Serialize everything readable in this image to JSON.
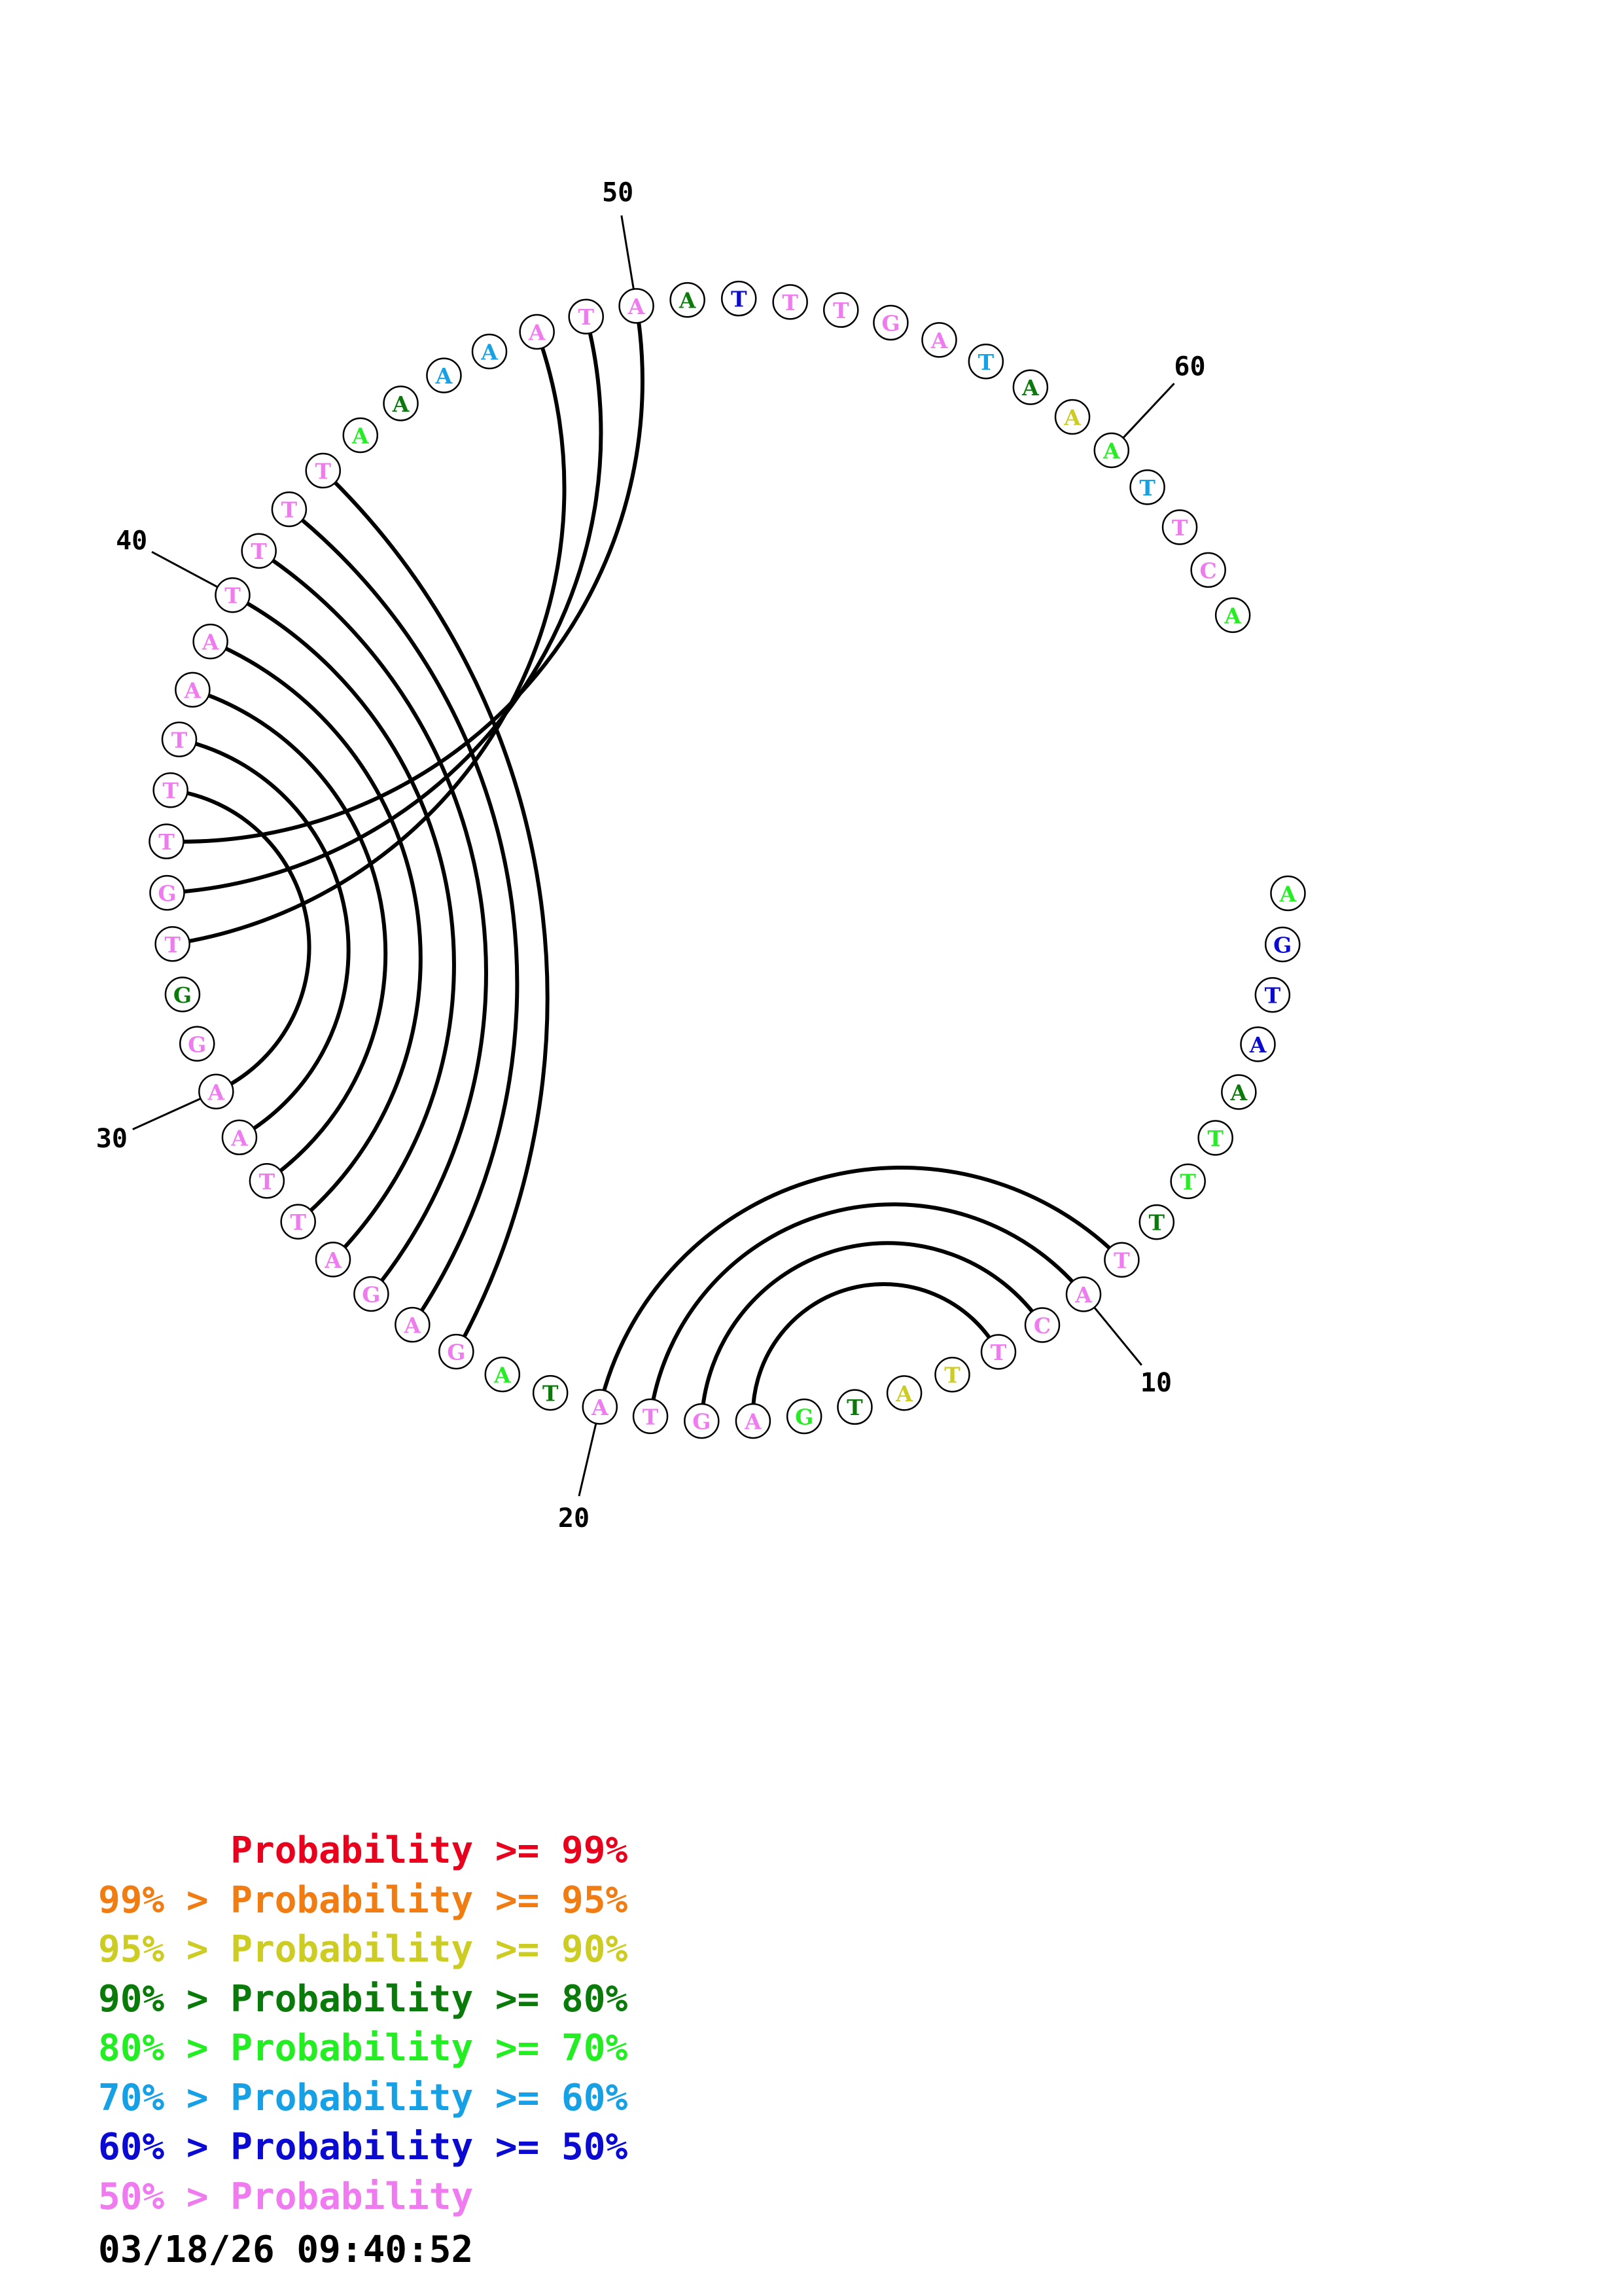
{
  "colors": {
    "p99": "#e8001c",
    "p95": "#f07c12",
    "p90": "#cccc22",
    "p80": "#0a7a0a",
    "p70": "#22ee22",
    "p60": "#16a0e6",
    "p50": "#0a0ad2",
    "plow": "#f07af0"
  },
  "sequence": [
    {
      "n": 1,
      "base": "A",
      "color": "p70"
    },
    {
      "n": 2,
      "base": "G",
      "color": "p50"
    },
    {
      "n": 3,
      "base": "T",
      "color": "p50"
    },
    {
      "n": 4,
      "base": "A",
      "color": "p50"
    },
    {
      "n": 5,
      "base": "A",
      "color": "p80"
    },
    {
      "n": 6,
      "base": "T",
      "color": "p70"
    },
    {
      "n": 7,
      "base": "T",
      "color": "p70"
    },
    {
      "n": 8,
      "base": "T",
      "color": "p80"
    },
    {
      "n": 9,
      "base": "T",
      "color": "plow"
    },
    {
      "n": 10,
      "base": "A",
      "color": "plow"
    },
    {
      "n": 11,
      "base": "C",
      "color": "plow"
    },
    {
      "n": 12,
      "base": "T",
      "color": "plow"
    },
    {
      "n": 13,
      "base": "T",
      "color": "p90"
    },
    {
      "n": 14,
      "base": "A",
      "color": "p90"
    },
    {
      "n": 15,
      "base": "T",
      "color": "p80"
    },
    {
      "n": 16,
      "base": "G",
      "color": "p70"
    },
    {
      "n": 17,
      "base": "A",
      "color": "plow"
    },
    {
      "n": 18,
      "base": "G",
      "color": "plow"
    },
    {
      "n": 19,
      "base": "T",
      "color": "plow"
    },
    {
      "n": 20,
      "base": "A",
      "color": "plow"
    },
    {
      "n": 21,
      "base": "T",
      "color": "p80"
    },
    {
      "n": 22,
      "base": "A",
      "color": "p70"
    },
    {
      "n": 23,
      "base": "G",
      "color": "plow"
    },
    {
      "n": 24,
      "base": "A",
      "color": "plow"
    },
    {
      "n": 25,
      "base": "G",
      "color": "plow"
    },
    {
      "n": 26,
      "base": "A",
      "color": "plow"
    },
    {
      "n": 27,
      "base": "T",
      "color": "plow"
    },
    {
      "n": 28,
      "base": "T",
      "color": "plow"
    },
    {
      "n": 29,
      "base": "A",
      "color": "plow"
    },
    {
      "n": 30,
      "base": "A",
      "color": "plow"
    },
    {
      "n": 31,
      "base": "G",
      "color": "plow"
    },
    {
      "n": 32,
      "base": "G",
      "color": "p80"
    },
    {
      "n": 33,
      "base": "T",
      "color": "plow"
    },
    {
      "n": 34,
      "base": "G",
      "color": "plow"
    },
    {
      "n": 35,
      "base": "T",
      "color": "plow"
    },
    {
      "n": 36,
      "base": "T",
      "color": "plow"
    },
    {
      "n": 37,
      "base": "T",
      "color": "plow"
    },
    {
      "n": 38,
      "base": "A",
      "color": "plow"
    },
    {
      "n": 39,
      "base": "A",
      "color": "plow"
    },
    {
      "n": 40,
      "base": "T",
      "color": "plow"
    },
    {
      "n": 41,
      "base": "T",
      "color": "plow"
    },
    {
      "n": 42,
      "base": "T",
      "color": "plow"
    },
    {
      "n": 43,
      "base": "T",
      "color": "plow"
    },
    {
      "n": 44,
      "base": "A",
      "color": "p70"
    },
    {
      "n": 45,
      "base": "A",
      "color": "p80"
    },
    {
      "n": 46,
      "base": "A",
      "color": "p60"
    },
    {
      "n": 47,
      "base": "A",
      "color": "p60"
    },
    {
      "n": 48,
      "base": "A",
      "color": "plow"
    },
    {
      "n": 49,
      "base": "T",
      "color": "plow"
    },
    {
      "n": 50,
      "base": "A",
      "color": "plow"
    },
    {
      "n": 51,
      "base": "A",
      "color": "p80"
    },
    {
      "n": 52,
      "base": "T",
      "color": "p50"
    },
    {
      "n": 53,
      "base": "T",
      "color": "plow"
    },
    {
      "n": 54,
      "base": "T",
      "color": "plow"
    },
    {
      "n": 55,
      "base": "G",
      "color": "plow"
    },
    {
      "n": 56,
      "base": "A",
      "color": "plow"
    },
    {
      "n": 57,
      "base": "T",
      "color": "p60"
    },
    {
      "n": 58,
      "base": "A",
      "color": "p80"
    },
    {
      "n": 59,
      "base": "A",
      "color": "p90"
    },
    {
      "n": 60,
      "base": "A",
      "color": "p70"
    },
    {
      "n": 61,
      "base": "T",
      "color": "p60"
    },
    {
      "n": 62,
      "base": "T",
      "color": "plow"
    },
    {
      "n": 63,
      "base": "C",
      "color": "plow"
    },
    {
      "n": 64,
      "base": "A",
      "color": "p70"
    }
  ],
  "pairs": [
    [
      9,
      20
    ],
    [
      10,
      19
    ],
    [
      11,
      18
    ],
    [
      12,
      17
    ],
    [
      23,
      43
    ],
    [
      24,
      42
    ],
    [
      25,
      41
    ],
    [
      26,
      40
    ],
    [
      27,
      39
    ],
    [
      28,
      38
    ],
    [
      29,
      37
    ],
    [
      30,
      36
    ],
    [
      35,
      50
    ],
    [
      34,
      49
    ],
    [
      33,
      48
    ]
  ],
  "position_labels": [
    {
      "n": 10,
      "text": "10"
    },
    {
      "n": 20,
      "text": "20"
    },
    {
      "n": 30,
      "text": "30"
    },
    {
      "n": 40,
      "text": "40"
    },
    {
      "n": 50,
      "text": "50"
    },
    {
      "n": 60,
      "text": "60"
    }
  ],
  "legend": [
    {
      "prefix": "",
      "label": "Probability >= 99%",
      "color": "p99"
    },
    {
      "prefix": "99% > ",
      "label": "Probability >= 95%",
      "color": "p95"
    },
    {
      "prefix": "95% > ",
      "label": "Probability >= 90%",
      "color": "p90"
    },
    {
      "prefix": "90% > ",
      "label": "Probability >= 80%",
      "color": "p80"
    },
    {
      "prefix": "80% > ",
      "label": "Probability >= 70%",
      "color": "p70"
    },
    {
      "prefix": "70% > ",
      "label": "Probability >= 60%",
      "color": "p60"
    },
    {
      "prefix": "60% > ",
      "label": "Probability >= 50%",
      "color": "p50"
    },
    {
      "prefix": "50% > ",
      "label": "Probability",
      "color": "plow"
    }
  ],
  "timestamp": "03/18/26 09:40:52"
}
